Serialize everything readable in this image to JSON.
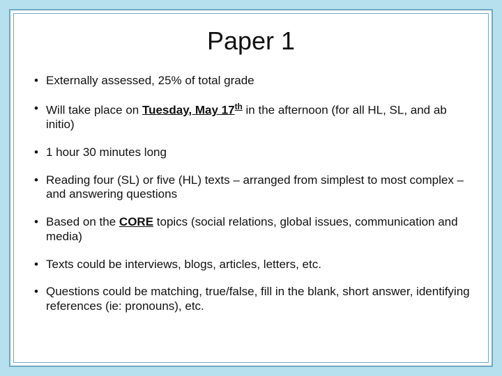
{
  "title": "Paper 1",
  "bullets": {
    "b0": "Externally assessed, 25% of total grade",
    "b1_pre": "Will take place on ",
    "b1_date": "Tuesday, May 17",
    "b1_sup": "th",
    "b1_post": " in the afternoon (for all HL, SL, and ab initio)",
    "b2": "1 hour 30 minutes long",
    "b3": "Reading four (SL) or five (HL) texts – arranged from simplest to most complex – and answering questions",
    "b4_pre": "Based on the ",
    "b4_core": "CORE",
    "b4_post": " topics (social relations, global issues, communication and media)",
    "b5": "Texts could be interviews, blogs, articles, letters, etc.",
    "b6": "Questions could be matching, true/false, fill in the blank, short answer, identifying references (ie: pronouns), etc."
  },
  "colors": {
    "page_bg": "#b6e0ed",
    "frame_border": "#6fa8bf",
    "content_bg": "#ffffff",
    "text": "#111111"
  },
  "typography": {
    "title_fontsize": 36,
    "body_fontsize": 17,
    "font_family": "Arial"
  }
}
